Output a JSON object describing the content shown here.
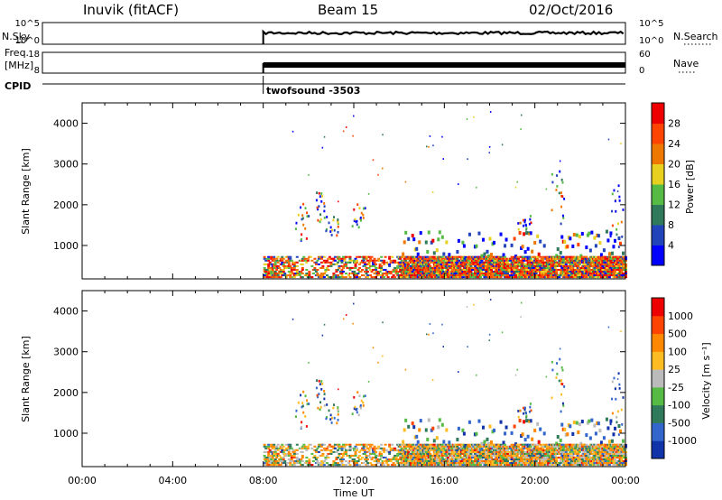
{
  "header": {
    "station": "Inuvik (fitACF)",
    "beam": "Beam 15",
    "date": "02/Oct/2016"
  },
  "params_panel": {
    "left_top": "N.Sky",
    "left_bottom": "Freq.",
    "left_bottom_unit": "[MHz]",
    "cpid_label": "CPID",
    "right_top": "N.Search",
    "right_bottom": "Nave",
    "nsky_ticks": [
      "10^5",
      "10^0"
    ],
    "nsearch_ticks": [
      "10^5",
      "10^0"
    ],
    "freq_ticks": [
      "18",
      "8"
    ],
    "nave_ticks": [
      "60",
      "0"
    ],
    "cpid_value": "twofsound -3503"
  },
  "x_axis": {
    "title": "Time UT",
    "ticks": [
      "00:00",
      "04:00",
      "08:00",
      "12:00",
      "16:00",
      "20:00",
      "00:00"
    ],
    "range_hours": [
      0,
      24
    ]
  },
  "chart_data": [
    {
      "type": "heatmap",
      "name": "power",
      "ylabel": "Slant Range [km]",
      "ylim": [
        180,
        4500
      ],
      "yticks": [
        "4000",
        "3000",
        "2000",
        "1000"
      ],
      "colorbar_label": "Power [dB]",
      "colorbar_ticks": [
        "28",
        "24",
        "20",
        "16",
        "12",
        "8",
        "4"
      ],
      "colors": [
        "#0000ff",
        "#2244bb",
        "#2f7a5a",
        "#55bb44",
        "#e8d020",
        "#ee7700",
        "#ff4400",
        "#ee0000"
      ],
      "data_start_hour": 8.0
    },
    {
      "type": "heatmap",
      "name": "velocity",
      "ylabel": "Slant Range [km]",
      "ylim": [
        180,
        4500
      ],
      "yticks": [
        "4000",
        "3000",
        "2000",
        "1000"
      ],
      "colorbar_label": "Velocity [m s⁻¹]",
      "colorbar_ticks": [
        "1000",
        "500",
        "100",
        "25",
        "-25",
        "-100",
        "-500",
        "-1000"
      ],
      "colors": [
        "#1133aa",
        "#3366cc",
        "#2f7a5a",
        "#55bb44",
        "#bbbbbb",
        "#ffbb22",
        "#ff8800",
        "#ff4400",
        "#ee0000"
      ],
      "data_start_hour": 8.0
    }
  ]
}
